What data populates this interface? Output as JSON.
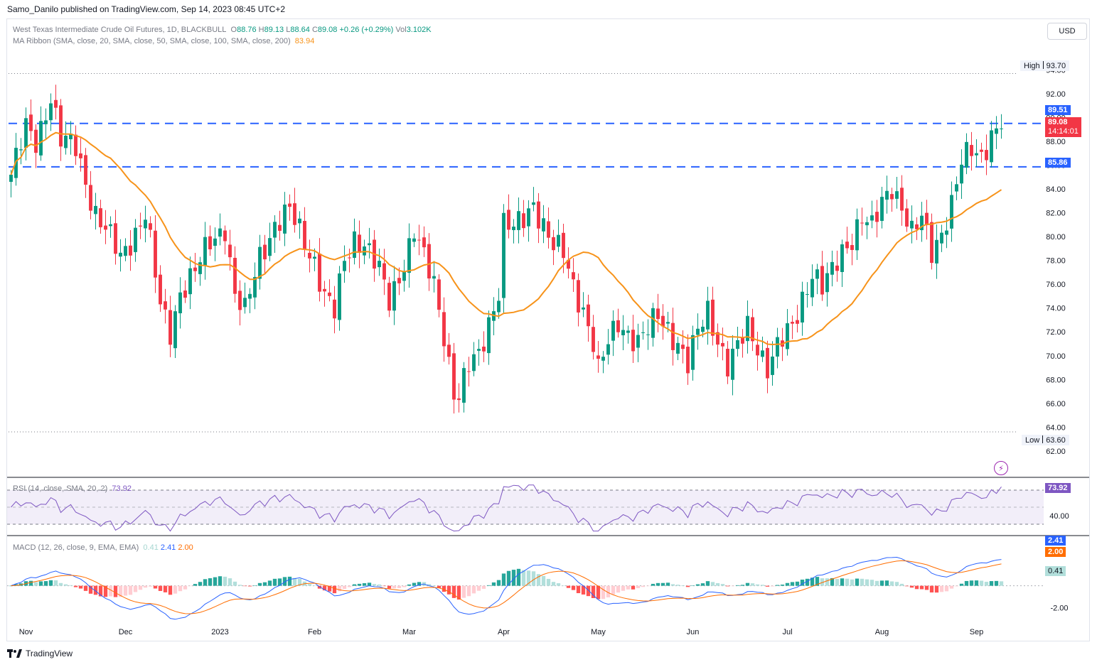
{
  "header": {
    "published": "Samo_Danilo published on TradingView.com, Sep 14, 2023 08:45 UTC+2"
  },
  "legend": {
    "symbol": "West Texas Intermediate Crude Oil Futures, 1D, BLACKBULL",
    "o_label": "O",
    "o_value": "88.76",
    "h_label": "H",
    "h_value": "89.13",
    "l_label": "L",
    "l_value": "88.64",
    "c_label": "C",
    "c_value": "89.08",
    "change": "+0.26 (+0.29%)",
    "vol_label": "Vol",
    "vol_value": "3.102K",
    "ma_ribbon": "MA Ribbon (SMA, close, 20, SMA, close, 50, SMA, close, 100, SMA, close, 200)",
    "ma_value": "83.94",
    "rsi": "RSI (14, close, SMA, 20, 2)",
    "rsi_value": "73.92",
    "macd": "MACD (12, 26, close, 9, EMA, EMA)",
    "macd_hist": "0.41",
    "macd_line": "2.41",
    "macd_signal": "2.00"
  },
  "currency": "USD",
  "price_labels": {
    "high_label": "High",
    "high_value": "93.70",
    "low_label": "Low",
    "low_value": "63.60",
    "level_upper": "89.51",
    "level_lower": "85.86",
    "last_price": "89.08",
    "countdown": "14:14:01"
  },
  "footer": {
    "brand": "TradingView"
  },
  "colors": {
    "up": "#089981",
    "down": "#f23645",
    "ma": "#f7931a",
    "level": "#2962ff",
    "rsi": "#7e57c2",
    "macd_line": "#2962ff",
    "signal": "#ff6d00"
  },
  "chart_data": [
    {
      "type": "candlestick",
      "title": "West Texas Intermediate Crude Oil Futures, 1D, BLACKBULL",
      "ylim": [
        60.8,
        95.1
      ],
      "y_ticks": [
        "62.00",
        "64.00",
        "66.00",
        "68.00",
        "70.00",
        "72.00",
        "74.00",
        "76.00",
        "78.00",
        "80.00",
        "82.00",
        "84.00",
        "86.00",
        "88.00",
        "90.00",
        "92.00",
        "94.00"
      ],
      "x_ticks": [
        "Nov",
        "Dec",
        "2023",
        "Feb",
        "Mar",
        "Apr",
        "May",
        "Jun",
        "Jul",
        "Aug",
        "Sep"
      ],
      "x_tick_positions": [
        3,
        23,
        42,
        61,
        80,
        99,
        118,
        137,
        156,
        175,
        194
      ],
      "horizontal_levels": [
        89.51,
        85.86
      ],
      "high": 93.7,
      "low": 63.6,
      "close_points": [
        [
          0,
          85.2
        ],
        [
          3,
          89.0
        ],
        [
          5,
          88.0
        ],
        [
          8,
          91.9
        ],
        [
          10,
          88.0
        ],
        [
          13,
          87.5
        ],
        [
          17,
          82.0
        ],
        [
          19,
          80.5
        ],
        [
          22,
          78.2
        ],
        [
          25,
          80.5
        ],
        [
          27,
          82.0
        ],
        [
          30,
          74.0
        ],
        [
          32,
          72.0
        ],
        [
          34,
          75.5
        ],
        [
          37,
          77.0
        ],
        [
          40,
          79.5
        ],
        [
          43,
          81.0
        ],
        [
          45,
          75.0
        ],
        [
          47,
          73.5
        ],
        [
          50,
          78.5
        ],
        [
          53,
          81.0
        ],
        [
          56,
          82.0
        ],
        [
          58,
          80.5
        ],
        [
          61,
          78.0
        ],
        [
          63,
          75.0
        ],
        [
          65,
          73.5
        ],
        [
          67,
          78.0
        ],
        [
          69,
          80.0
        ],
        [
          71,
          79.5
        ],
        [
          74,
          77.0
        ],
        [
          76,
          74.5
        ],
        [
          79,
          78.0
        ],
        [
          81,
          80.5
        ],
        [
          83,
          78.0
        ],
        [
          85,
          76.0
        ],
        [
          87,
          72.0
        ],
        [
          89,
          67.0
        ],
        [
          90,
          66.5
        ],
        [
          92,
          69.0
        ],
        [
          94,
          70.0
        ],
        [
          96,
          73.0
        ],
        [
          98,
          75.5
        ],
        [
          99,
          81.0
        ],
        [
          101,
          80.5
        ],
        [
          103,
          81.5
        ],
        [
          105,
          83.0
        ],
        [
          107,
          81.0
        ],
        [
          109,
          79.0
        ],
        [
          111,
          78.5
        ],
        [
          113,
          76.0
        ],
        [
          115,
          74.0
        ],
        [
          117,
          71.0
        ],
        [
          118,
          68.5
        ],
        [
          120,
          71.0
        ],
        [
          122,
          73.0
        ],
        [
          124,
          72.0
        ],
        [
          126,
          71.0
        ],
        [
          128,
          72.0
        ],
        [
          130,
          73.5
        ],
        [
          132,
          72.5
        ],
        [
          134,
          71.0
        ],
        [
          136,
          69.0
        ],
        [
          138,
          72.0
        ],
        [
          140,
          74.0
        ],
        [
          142,
          71.5
        ],
        [
          144,
          69.0
        ],
        [
          146,
          70.5
        ],
        [
          148,
          72.5
        ],
        [
          150,
          71.0
        ],
        [
          152,
          69.0
        ],
        [
          154,
          70.5
        ],
        [
          157,
          72.5
        ],
        [
          159,
          75.0
        ],
        [
          161,
          77.0
        ],
        [
          163,
          75.5
        ],
        [
          165,
          77.0
        ],
        [
          167,
          79.0
        ],
        [
          169,
          80.0
        ],
        [
          171,
          81.5
        ],
        [
          173,
          80.5
        ],
        [
          175,
          83.0
        ],
        [
          177,
          84.5
        ],
        [
          179,
          82.5
        ],
        [
          181,
          80.0
        ],
        [
          183,
          81.5
        ],
        [
          185,
          79.0
        ],
        [
          187,
          80.5
        ],
        [
          189,
          82.5
        ],
        [
          191,
          86.0
        ],
        [
          193,
          87.5
        ],
        [
          195,
          87.0
        ],
        [
          197,
          88.5
        ],
        [
          199,
          89.08
        ]
      ],
      "ma_last_value": 83.94
    },
    {
      "type": "line",
      "title": "RSI (14, close, SMA, 20, 2)",
      "ylim": [
        20,
        80
      ],
      "y_ticks": [
        "40.00"
      ],
      "bands": [
        70,
        30
      ],
      "last_value": 73.92
    },
    {
      "type": "bar",
      "title": "MACD (12, 26, close, 9, EMA, EMA)",
      "ylim": [
        -3.6,
        4.4
      ],
      "y_ticks": [
        "-2.00"
      ],
      "series": [
        {
          "name": "MACD",
          "last": 2.41
        },
        {
          "name": "Signal",
          "last": 2.0
        },
        {
          "name": "Histogram",
          "last": 0.41
        }
      ]
    }
  ]
}
